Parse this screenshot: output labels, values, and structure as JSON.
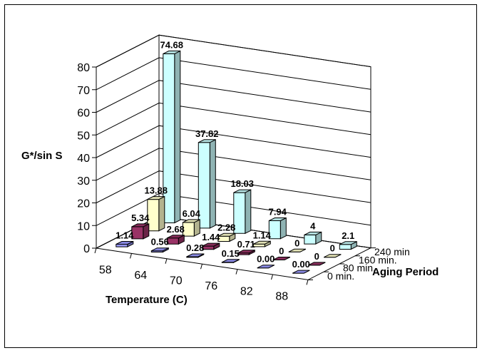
{
  "chart_data": {
    "type": "bar",
    "subtype": "3d-clustered-columns",
    "title": "",
    "ylabel": "G*/sin S",
    "xlabel": "Temperature (C)",
    "zlabel": "Aging Period",
    "ylim": [
      0,
      80
    ],
    "yticks": [
      "0",
      "10",
      "20",
      "30",
      "40",
      "50",
      "60",
      "70",
      "80"
    ],
    "categories": [
      "58",
      "64",
      "70",
      "76",
      "82",
      "88"
    ],
    "grid": true,
    "series": [
      {
        "name": "0 min.",
        "color": "#9999ff",
        "values": [
          1.14,
          0.56,
          0.28,
          0.15,
          0.0,
          0.0
        ],
        "labels": [
          "1.14",
          "0.56",
          "0.28",
          "0.15",
          "0.00",
          "0.00"
        ]
      },
      {
        "name": "80 min.",
        "color": "#993366",
        "values": [
          5.34,
          2.68,
          1.44,
          0.71,
          0,
          0
        ],
        "labels": [
          "5.34",
          "2.68",
          "1.44",
          "0.71",
          "0",
          "0"
        ]
      },
      {
        "name": "160 min.",
        "color": "#ffffcc",
        "values": [
          13.88,
          6.04,
          2.28,
          1.14,
          0,
          0
        ],
        "labels": [
          "13.88",
          "6.04",
          "2.28",
          "1.14",
          "0",
          "0"
        ]
      },
      {
        "name": "240 min",
        "color": "#ccffff",
        "values": [
          74.68,
          37.82,
          18.03,
          7.94,
          4,
          2.1
        ],
        "labels": [
          "74.68",
          "37.82",
          "18.03",
          "7.94",
          "4",
          "2.1"
        ]
      }
    ]
  }
}
